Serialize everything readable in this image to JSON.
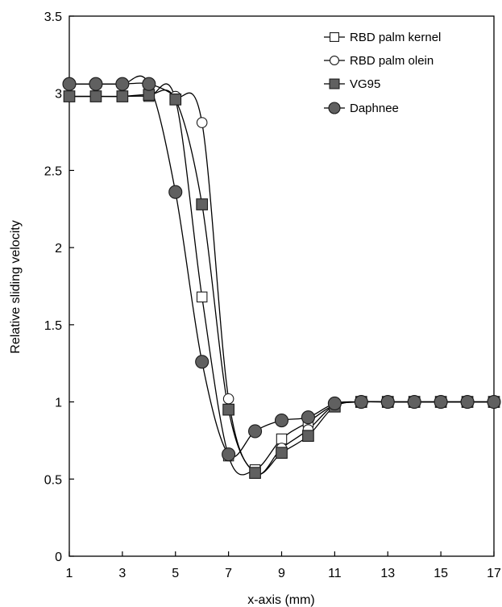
{
  "chart_data": {
    "type": "line",
    "xlabel": "x-axis (mm)",
    "ylabel": "Relative sliding velocity",
    "xlim": [
      1,
      17
    ],
    "ylim": [
      0,
      3.5
    ],
    "xticks": [
      "1",
      "3",
      "5",
      "7",
      "9",
      "11",
      "13",
      "15",
      "17"
    ],
    "yticks": [
      "0",
      "0.5",
      "1",
      "1.5",
      "2",
      "2.5",
      "3",
      "3.5"
    ],
    "grid": false,
    "legend_position": "top-right",
    "series": [
      {
        "name": "RBD palm kernel",
        "marker": "square-open",
        "x": [
          1,
          2,
          3,
          4,
          5,
          6,
          7,
          8,
          9,
          10,
          11,
          12,
          13,
          14,
          15,
          16,
          17
        ],
        "y": [
          2.98,
          2.98,
          2.98,
          2.98,
          2.96,
          1.68,
          0.65,
          0.56,
          0.76,
          0.87,
          0.98,
          1.0,
          1.0,
          1.0,
          1.0,
          1.0,
          1.0
        ]
      },
      {
        "name": "RBD palm olein",
        "marker": "circle-open",
        "x": [
          1,
          2,
          3,
          4,
          5,
          6,
          7,
          8,
          9,
          10,
          11,
          12,
          13,
          14,
          15,
          16,
          17
        ],
        "y": [
          3.06,
          3.06,
          3.06,
          3.06,
          2.98,
          2.81,
          1.02,
          0.54,
          0.7,
          0.82,
          0.98,
          1.0,
          1.0,
          1.0,
          1.0,
          1.0,
          1.0
        ]
      },
      {
        "name": "VG95",
        "marker": "square-filled",
        "x": [
          1,
          2,
          3,
          4,
          5,
          6,
          7,
          8,
          9,
          10,
          11,
          12,
          13,
          14,
          15,
          16,
          17
        ],
        "y": [
          2.98,
          2.98,
          2.98,
          2.99,
          2.96,
          2.28,
          0.95,
          0.54,
          0.67,
          0.78,
          0.97,
          1.0,
          1.0,
          1.0,
          1.0,
          1.0,
          1.0
        ]
      },
      {
        "name": "Daphnee",
        "marker": "circle-filled",
        "x": [
          1,
          2,
          3,
          4,
          5,
          6,
          7,
          8,
          9,
          10,
          11,
          12,
          13,
          14,
          15,
          16,
          17
        ],
        "y": [
          3.06,
          3.06,
          3.06,
          3.06,
          2.36,
          1.26,
          0.66,
          0.81,
          0.88,
          0.9,
          0.99,
          1.0,
          1.0,
          1.0,
          1.0,
          1.0,
          1.0
        ]
      }
    ]
  },
  "colors": {
    "line": "#000000",
    "filled_marker": "#606060",
    "open_marker": "#ffffff",
    "marker_stroke": "#1a1a1a"
  }
}
